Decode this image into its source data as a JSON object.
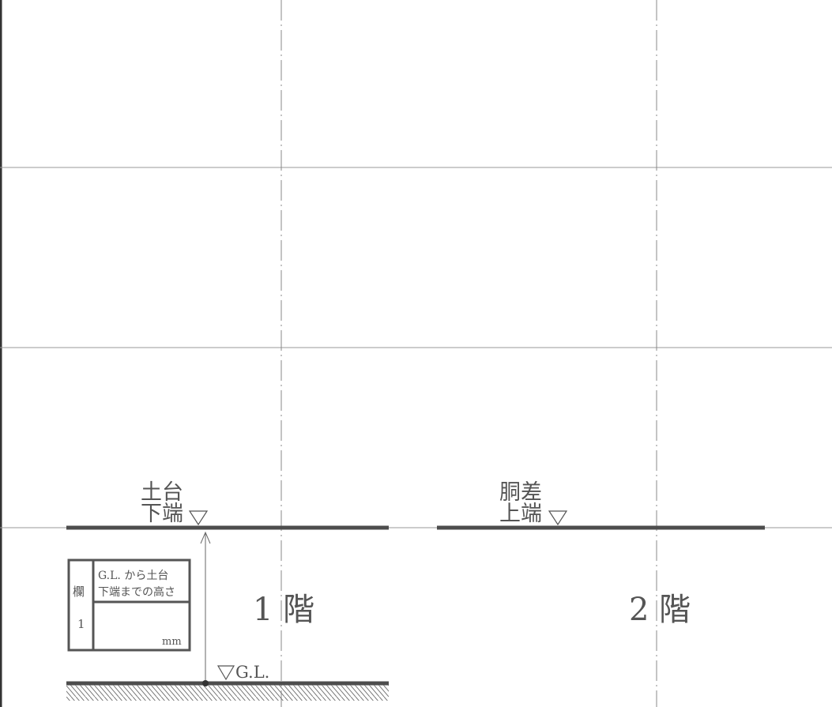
{
  "labels": {
    "dodai_line1": "土台",
    "dodai_line2": "下端",
    "dousashi_line1": "胴差",
    "dousashi_line2": "上端",
    "floor1": "1 階",
    "floor2": "2 階",
    "gl": "G.L."
  },
  "table": {
    "col_header": "欄",
    "col_value": "1",
    "title_line1": "G.L. から土台",
    "title_line2": "下端までの高さ",
    "value": "",
    "unit": "mm"
  },
  "colors": {
    "beam": "#4d4d4d",
    "grid": "#8a8a8a",
    "text": "#555555"
  }
}
